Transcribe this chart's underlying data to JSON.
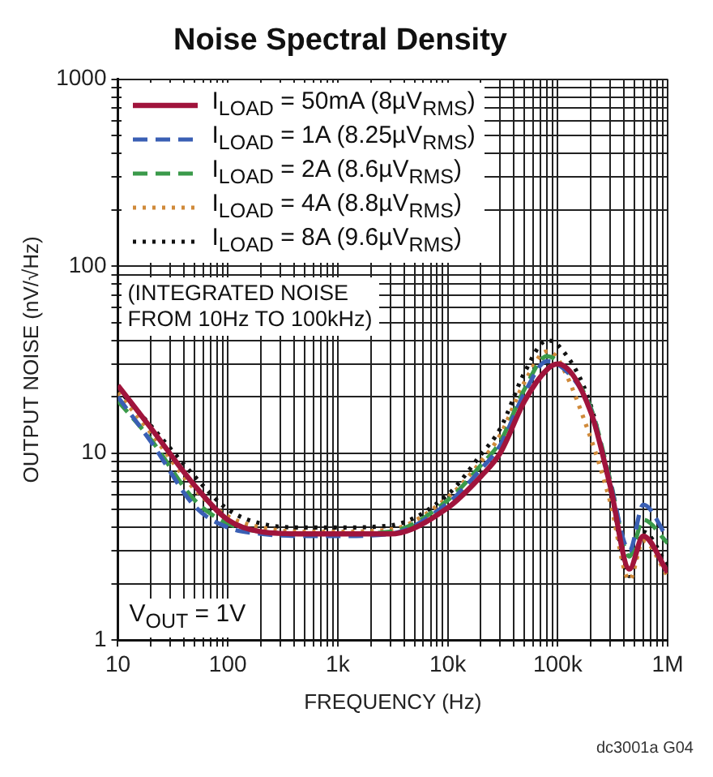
{
  "chart_data": {
    "type": "line",
    "title": "Noise Spectral Density",
    "xlabel": "FREQUENCY (Hz)",
    "ylabel": "OUTPUT NOISE (nV/√Hz)",
    "log": "xy",
    "grid": true,
    "legend": "top left",
    "marker": "none",
    "xlim": [
      10,
      1000000
    ],
    "ylim": [
      1,
      1000
    ],
    "xticks": [
      10,
      {
        "value": 20,
        "label": null
      },
      {
        "value": 30,
        "label": null
      },
      {
        "value": 40,
        "label": null
      },
      {
        "value": 50,
        "label": null
      },
      {
        "value": 60,
        "label": null
      },
      {
        "value": 70,
        "label": null
      },
      {
        "value": 80,
        "label": null
      },
      {
        "value": 90,
        "label": null
      },
      100,
      {
        "value": 200,
        "label": null
      },
      {
        "value": 300,
        "label": null
      },
      {
        "value": 400,
        "label": null
      },
      {
        "value": 500,
        "label": null
      },
      {
        "value": 600,
        "label": null
      },
      {
        "value": 700,
        "label": null
      },
      {
        "value": 800,
        "label": null
      },
      {
        "value": 900,
        "label": null
      },
      {
        "value": 1000,
        "label": "1k"
      },
      {
        "value": 2000,
        "label": null
      },
      {
        "value": 3000,
        "label": null
      },
      {
        "value": 4000,
        "label": null
      },
      {
        "value": 5000,
        "label": null
      },
      {
        "value": 6000,
        "label": null
      },
      {
        "value": 7000,
        "label": null
      },
      {
        "value": 8000,
        "label": null
      },
      {
        "value": 9000,
        "label": null
      },
      {
        "value": 10000,
        "label": "10k"
      },
      {
        "value": 20000,
        "label": null
      },
      {
        "value": 30000,
        "label": null
      },
      {
        "value": 40000,
        "label": null
      },
      {
        "value": 50000,
        "label": null
      },
      {
        "value": 60000,
        "label": null
      },
      {
        "value": 70000,
        "label": null
      },
      {
        "value": 80000,
        "label": null
      },
      {
        "value": 90000,
        "label": null
      },
      {
        "value": 100000,
        "label": "100k"
      },
      {
        "value": 200000,
        "label": null
      },
      {
        "value": 300000,
        "label": null
      },
      {
        "value": 400000,
        "label": null
      },
      {
        "value": 500000,
        "label": null
      },
      {
        "value": 600000,
        "label": null
      },
      {
        "value": 700000,
        "label": null
      },
      {
        "value": 800000,
        "label": null
      },
      {
        "value": 900000,
        "label": null
      },
      {
        "value": 1000000,
        "label": "1M"
      }
    ],
    "yticks": [
      1,
      {
        "value": 2,
        "label": null
      },
      {
        "value": 3,
        "label": null
      },
      {
        "value": 4,
        "label": null
      },
      {
        "value": 5,
        "label": null
      },
      {
        "value": 6,
        "label": null
      },
      {
        "value": 7,
        "label": null
      },
      {
        "value": 8,
        "label": null
      },
      {
        "value": 9,
        "label": null
      },
      10,
      {
        "value": 20,
        "label": null
      },
      {
        "value": 30,
        "label": null
      },
      {
        "value": 40,
        "label": null
      },
      {
        "value": 50,
        "label": null
      },
      {
        "value": 60,
        "label": null
      },
      {
        "value": 70,
        "label": null
      },
      {
        "value": 80,
        "label": null
      },
      {
        "value": 90,
        "label": null
      },
      100,
      {
        "value": 200,
        "label": null
      },
      {
        "value": 300,
        "label": null
      },
      {
        "value": 400,
        "label": null
      },
      {
        "value": 500,
        "label": null
      },
      {
        "value": 600,
        "label": null
      },
      {
        "value": 700,
        "label": null
      },
      {
        "value": 800,
        "label": null
      },
      {
        "value": 900,
        "label": null
      },
      1000
    ],
    "x": [
      10,
      20,
      50,
      100,
      200,
      500,
      1000,
      3000,
      10000,
      20000,
      30000,
      50000,
      80000,
      100000,
      200000,
      300000,
      450000,
      600000,
      1000000
    ],
    "series": [
      {
        "name": "I$_{LOAD}$ = 50mA (8µV$_{RMS}$)",
        "color": "#a0143c",
        "line_style": "solid",
        "values": [
          23,
          13.6,
          6.7,
          4.4,
          3.8,
          3.7,
          3.7,
          3.7,
          5.1,
          7.5,
          10,
          19,
          28,
          30,
          16.6,
          6.7,
          2.4,
          3.6,
          2.3
        ]
      },
      {
        "name": "I$_{LOAD}$ = 1A (8.25µV$_{RMS}$)",
        "color": "#3a5fb4",
        "line_style": "dashed",
        "values": [
          20,
          11.5,
          5.2,
          4.0,
          3.7,
          3.6,
          3.6,
          3.7,
          5.4,
          8.2,
          11,
          21,
          31,
          30,
          17,
          7,
          3.0,
          5.3,
          3.5
        ]
      },
      {
        "name": "I$_{LOAD}$ = 2A (8.6µV$_{RMS}$)",
        "color": "#3a9a4a",
        "line_style": "dashed",
        "values": [
          19,
          11.8,
          5.6,
          4.2,
          3.8,
          3.7,
          3.7,
          3.8,
          5.6,
          8.6,
          11.5,
          22,
          33,
          31,
          17.5,
          7.2,
          2.8,
          4.4,
          3.3
        ]
      },
      {
        "name": "I$_{LOAD}$ = 4A (8.8µV$_{RMS}$)",
        "color": "#d08a3a",
        "line_style": "dotted",
        "values": [
          21,
          12.8,
          6.4,
          4.6,
          4.0,
          3.8,
          3.8,
          3.9,
          5.8,
          9,
          12.5,
          24,
          35,
          32,
          12,
          5.5,
          2.1,
          3.4,
          2.2
        ]
      },
      {
        "name": "I$_{LOAD}$ = 8A (9.6µV$_{RMS}$)",
        "color": "#111111",
        "line_style": "dotted",
        "values": [
          22,
          14,
          7.5,
          5.0,
          4.2,
          4.0,
          4.0,
          4.1,
          6.0,
          9.8,
          13.5,
          27,
          40,
          38,
          18,
          6.5,
          2.2,
          3.8,
          2.5
        ]
      }
    ],
    "annotations": [
      "(INTEGRATED NOISE\nFROM 10Hz TO 100kHz)",
      "V$_{OUT}$ = 1V",
      "dc3001a G04"
    ]
  }
}
